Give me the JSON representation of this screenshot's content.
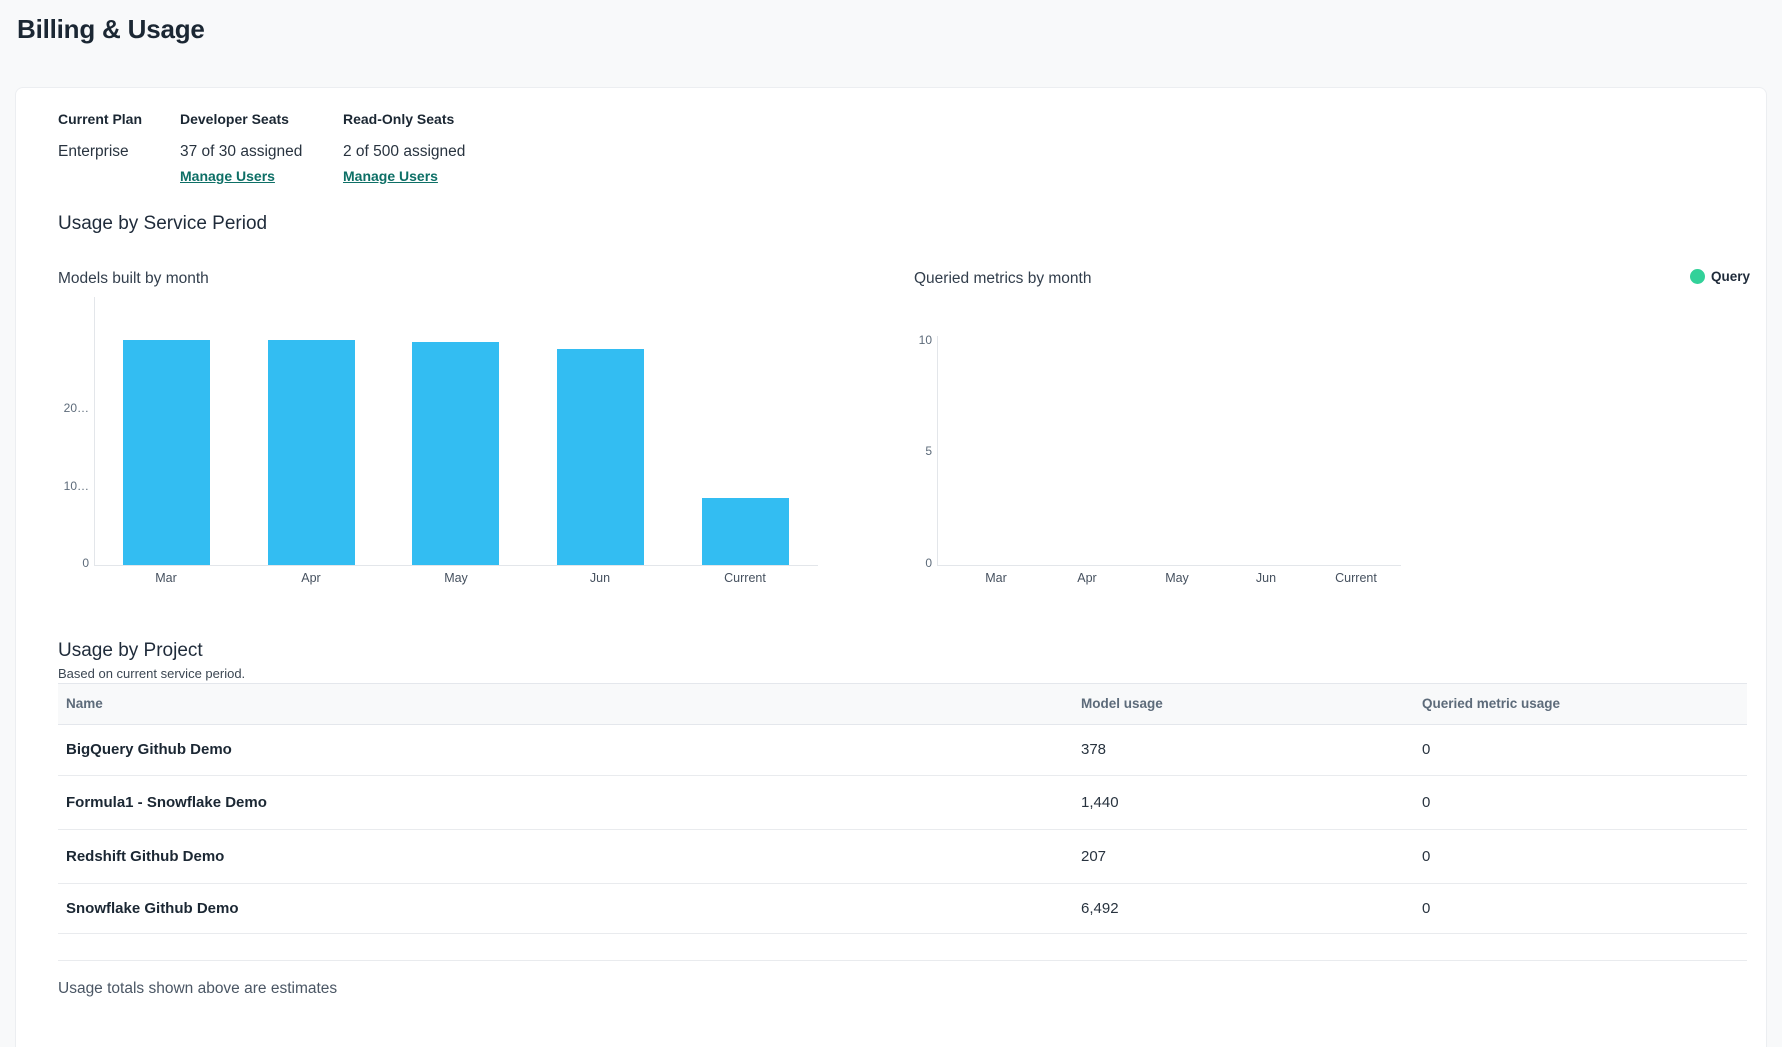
{
  "page": {
    "title": "Billing & Usage"
  },
  "plan_summary": {
    "items": [
      {
        "label": "Current Plan",
        "value": "Enterprise",
        "link_label": null
      },
      {
        "label": "Developer Seats",
        "value": "37 of 30 assigned",
        "link_label": "Manage Users"
      },
      {
        "label": "Read-Only Seats",
        "value": "2 of 500 assigned",
        "link_label": "Manage Users"
      }
    ]
  },
  "usage_by_service_period": {
    "heading": "Usage by Service Period"
  },
  "chart_data": [
    {
      "type": "bar",
      "title": "Models built by month",
      "categories": [
        "Mar",
        "Apr",
        "May",
        "Jun",
        "Current"
      ],
      "values": [
        28700,
        28700,
        28400,
        27500,
        8500
      ],
      "y_ticks": [
        {
          "value": 0,
          "label": "0"
        },
        {
          "value": 10000,
          "label": "10…"
        },
        {
          "value": 20000,
          "label": "20…"
        }
      ],
      "ylim": [
        0,
        34000
      ],
      "bar_color": "#33bdf2",
      "grid": false,
      "legend": null
    },
    {
      "type": "bar",
      "title": "Queried metrics by month",
      "categories": [
        "Mar",
        "Apr",
        "May",
        "Jun",
        "Current"
      ],
      "values": [
        0,
        0,
        0,
        0,
        0
      ],
      "y_ticks": [
        {
          "value": 0,
          "label": "0"
        },
        {
          "value": 5,
          "label": "5"
        },
        {
          "value": 10,
          "label": "10"
        }
      ],
      "ylim": [
        0,
        10
      ],
      "bar_color": "#32d199",
      "grid": false,
      "legend": {
        "position": "top-right",
        "entries": [
          {
            "label": "Query",
            "color": "#32d199"
          }
        ]
      }
    }
  ],
  "usage_by_project": {
    "heading": "Usage by Project",
    "subheading": "Based on current service period.",
    "columns": [
      "Name",
      "Model usage",
      "Queried metric usage"
    ],
    "rows": [
      {
        "name": "BigQuery Github Demo",
        "model_usage": "378",
        "queried_metric_usage": "0"
      },
      {
        "name": "Formula1 - Snowflake Demo",
        "model_usage": "1,440",
        "queried_metric_usage": "0"
      },
      {
        "name": "Redshift Github Demo",
        "model_usage": "207",
        "queried_metric_usage": "0"
      },
      {
        "name": "Snowflake Github Demo",
        "model_usage": "6,492",
        "queried_metric_usage": "0"
      }
    ],
    "footnote": "Usage totals shown above are estimates"
  },
  "colors": {
    "accent_blue": "#33bdf2",
    "accent_green": "#32d199",
    "link_teal": "#0d6f66",
    "heading_text": "#1b2733",
    "muted_text": "#5d6b7a"
  }
}
